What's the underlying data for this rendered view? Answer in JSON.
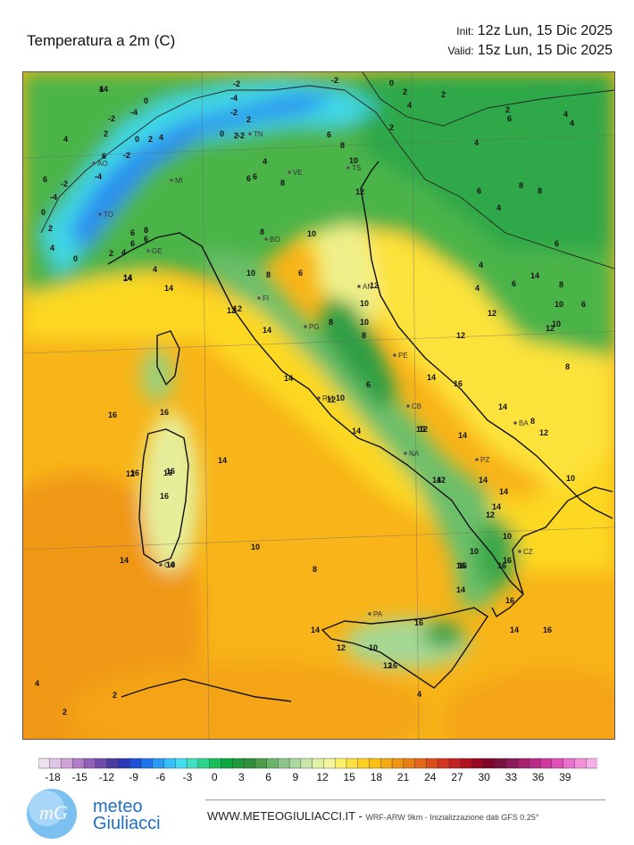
{
  "header": {
    "title": "Temperatura a 2m   (C)",
    "init_label": "Init:",
    "init_value": "12z Lun, 15 Dic 2025",
    "valid_label": "Valid:",
    "valid_value": "15z Lun, 15 Dic 2025"
  },
  "colorbar": {
    "ticks": [
      "-18",
      "-15",
      "-12",
      "-9",
      "-6",
      "-3",
      "0",
      "3",
      "6",
      "9",
      "12",
      "15",
      "18",
      "21",
      "24",
      "27",
      "30",
      "33",
      "36",
      "39"
    ],
    "colors": [
      "#efe0ef",
      "#e0c4e6",
      "#cfa2d8",
      "#b27cc8",
      "#9160b8",
      "#6e4cac",
      "#4b3ba0",
      "#2a36b8",
      "#1f50d8",
      "#1f74ee",
      "#2a9af6",
      "#35c0f8",
      "#40e0f0",
      "#3fe0c0",
      "#2ad48a",
      "#19c05a",
      "#0aa840",
      "#1d9a3c",
      "#2f8f3c",
      "#4a9e4a",
      "#6ab36a",
      "#8cc48c",
      "#a8d8a0",
      "#c8e6a8",
      "#e2f0a6",
      "#f4f49a",
      "#fcf06a",
      "#fde040",
      "#fdd020",
      "#f8c010",
      "#f4aa10",
      "#ef9410",
      "#ea7e16",
      "#e3661a",
      "#db4e1c",
      "#d2361e",
      "#c42220",
      "#b01020",
      "#980820",
      "#800428",
      "#781040",
      "#8a1a58",
      "#a42070",
      "#bc2a88",
      "#d038a0",
      "#e050b8",
      "#ea70cc",
      "#f290dc",
      "#f6b0e8"
    ]
  },
  "map": {
    "cities": [
      "AO",
      "TO",
      "MI",
      "TN",
      "VE",
      "TS",
      "GE",
      "BO",
      "FI",
      "AN",
      "PG",
      "PE",
      "RM",
      "CB",
      "NA",
      "BA",
      "PZ",
      "CZ",
      "CA",
      "PA"
    ],
    "temperature_labels": [
      {
        "v": "4"
      },
      {
        "v": "0"
      },
      {
        "v": "-2"
      },
      {
        "v": "-4"
      },
      {
        "v": "4"
      },
      {
        "v": "2"
      },
      {
        "v": "0"
      },
      {
        "v": "2"
      },
      {
        "v": "4"
      },
      {
        "v": "-2"
      },
      {
        "v": "-4"
      },
      {
        "v": "-2"
      },
      {
        "v": "2"
      },
      {
        "v": "0"
      },
      {
        "v": "-2"
      },
      {
        "v": "-2"
      },
      {
        "v": "0"
      },
      {
        "v": "2"
      },
      {
        "v": "2"
      },
      {
        "v": "4"
      },
      {
        "v": "2"
      },
      {
        "v": "4"
      },
      {
        "v": "2"
      },
      {
        "v": "4"
      },
      {
        "v": "6"
      },
      {
        "v": "-2"
      },
      {
        "v": "-4"
      },
      {
        "v": "0"
      },
      {
        "v": "2"
      },
      {
        "v": "4"
      },
      {
        "v": "6"
      },
      {
        "v": "-2"
      },
      {
        "v": "-4"
      },
      {
        "v": "0"
      },
      {
        "v": "2"
      },
      {
        "v": "4"
      },
      {
        "v": "6"
      },
      {
        "v": "8"
      },
      {
        "v": "6"
      },
      {
        "v": "6"
      },
      {
        "v": "2"
      },
      {
        "v": "4"
      },
      {
        "v": "6"
      },
      {
        "v": "8"
      },
      {
        "v": "10"
      },
      {
        "v": "12"
      },
      {
        "v": "6"
      },
      {
        "v": "8"
      },
      {
        "v": "8"
      },
      {
        "v": "10"
      },
      {
        "v": "6"
      },
      {
        "v": "4"
      },
      {
        "v": "6"
      },
      {
        "v": "8"
      },
      {
        "v": "10"
      },
      {
        "v": "12"
      },
      {
        "v": "14"
      },
      {
        "v": "14"
      },
      {
        "v": "14"
      },
      {
        "v": "12"
      },
      {
        "v": "14"
      },
      {
        "v": "8"
      },
      {
        "v": "10"
      },
      {
        "v": "12"
      },
      {
        "v": "10"
      },
      {
        "v": "8"
      },
      {
        "v": "6"
      },
      {
        "v": "14"
      },
      {
        "v": "12"
      },
      {
        "v": "10"
      },
      {
        "v": "14"
      },
      {
        "v": "14"
      },
      {
        "v": "12"
      },
      {
        "v": "16"
      },
      {
        "v": "16"
      },
      {
        "v": "14"
      },
      {
        "v": "12"
      },
      {
        "v": "16"
      },
      {
        "v": "16"
      },
      {
        "v": "16"
      },
      {
        "v": "16"
      },
      {
        "v": "16"
      },
      {
        "v": "14"
      },
      {
        "v": "14"
      },
      {
        "v": "10"
      },
      {
        "v": "8"
      },
      {
        "v": "10"
      },
      {
        "v": "10"
      },
      {
        "v": "12"
      },
      {
        "v": "14"
      },
      {
        "v": "14"
      },
      {
        "v": "12"
      },
      {
        "v": "14"
      },
      {
        "v": "12"
      },
      {
        "v": "8"
      },
      {
        "v": "10"
      },
      {
        "v": "14"
      },
      {
        "v": "10"
      },
      {
        "v": "12"
      },
      {
        "v": "14"
      },
      {
        "v": "14"
      },
      {
        "v": "10"
      },
      {
        "v": "16"
      },
      {
        "v": "16"
      },
      {
        "v": "16"
      },
      {
        "v": "16"
      },
      {
        "v": "14"
      },
      {
        "v": "16"
      },
      {
        "v": "14"
      },
      {
        "v": "12"
      },
      {
        "v": "10"
      },
      {
        "v": "12"
      },
      {
        "v": "16"
      },
      {
        "v": "16"
      },
      {
        "v": "14"
      },
      {
        "v": "16"
      },
      {
        "v": "4"
      },
      {
        "v": "2"
      },
      {
        "v": "2"
      },
      {
        "v": "4"
      },
      {
        "v": "4"
      },
      {
        "v": "6"
      },
      {
        "v": "6"
      },
      {
        "v": "4"
      },
      {
        "v": "6"
      },
      {
        "v": "8"
      },
      {
        "v": "6"
      },
      {
        "v": "8"
      },
      {
        "v": "4"
      },
      {
        "v": "8"
      },
      {
        "v": "6"
      },
      {
        "v": "4"
      },
      {
        "v": "10"
      },
      {
        "v": "14"
      },
      {
        "v": "12"
      },
      {
        "v": "8"
      },
      {
        "v": "10"
      },
      {
        "v": "12"
      },
      {
        "v": "14"
      }
    ]
  },
  "footer": {
    "logo_top": "meteo",
    "logo_bottom": "Giuliacci",
    "website": "WWW.METEOGIULIACCI.IT -",
    "model_info": "WRF-ARW 9km - Inizializzazione dati GFS 0.25°"
  }
}
